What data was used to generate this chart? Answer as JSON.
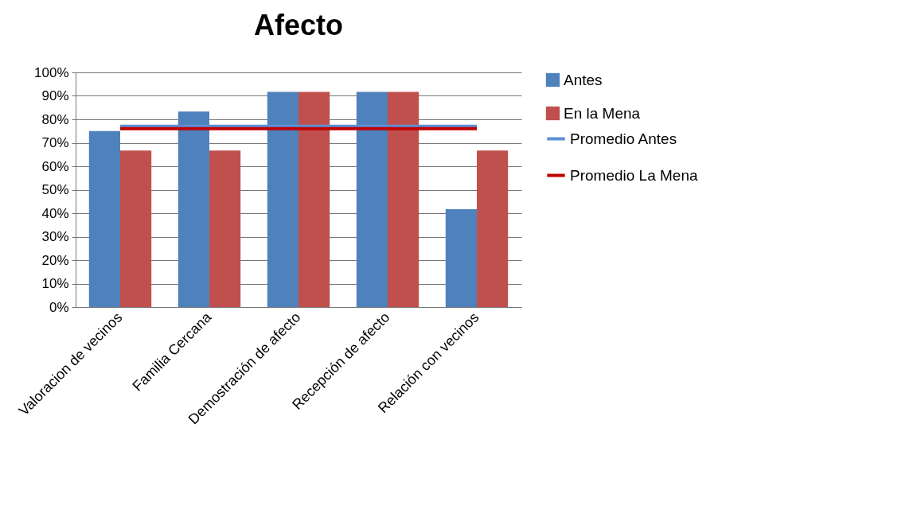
{
  "chart_data": {
    "type": "bar",
    "title": "Afecto",
    "categories": [
      "Valoracion de vecinos",
      "Familia Cercana",
      "Demostración de afecto",
      "Recepción de afecto",
      "Relación con vecinos"
    ],
    "series": [
      {
        "name": "Antes",
        "color": "#4f81bd",
        "values": [
          75,
          83.3,
          91.7,
          91.7,
          41.7
        ]
      },
      {
        "name": "En la Mena",
        "color": "#c0504d",
        "values": [
          66.7,
          66.7,
          91.7,
          91.7,
          66.7
        ]
      },
      {
        "name": "Promedio Antes",
        "type": "line",
        "color": "#5b8fd6",
        "values": [
          77,
          77,
          77,
          77,
          77
        ]
      },
      {
        "name": "Promedio La Mena",
        "type": "line",
        "color": "#c00000",
        "values": [
          76,
          76,
          76,
          76,
          76
        ]
      }
    ],
    "ylim": [
      0,
      100
    ],
    "yticks": [
      {
        "value": 0,
        "label": "0%"
      },
      {
        "value": 10,
        "label": "10%"
      },
      {
        "value": 20,
        "label": "20%"
      },
      {
        "value": 30,
        "label": "30%"
      },
      {
        "value": 40,
        "label": "40%"
      },
      {
        "value": 50,
        "label": "50%"
      },
      {
        "value": 60,
        "label": "60%"
      },
      {
        "value": 70,
        "label": "70%"
      },
      {
        "value": 80,
        "label": "80%"
      },
      {
        "value": 90,
        "label": "90%"
      },
      {
        "value": 100,
        "label": "100%"
      }
    ],
    "grid": "y",
    "legend": "right"
  }
}
